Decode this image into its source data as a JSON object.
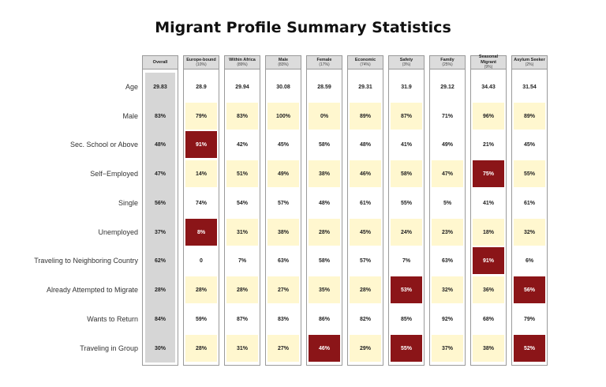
{
  "title": "Migrant Profile Summary Statistics",
  "colors": {
    "low": "#fff7cf",
    "high": "#8b1518",
    "neutral": "#ffffff",
    "overall": "#d6d6d6"
  },
  "chart_data": {
    "type": "table",
    "title": "Migrant Profile Summary Statistics",
    "columns": [
      {
        "name": "Overall",
        "share": ""
      },
      {
        "name": "Europe-bound",
        "share": "(10%)"
      },
      {
        "name": "Within Africa",
        "share": "(89%)"
      },
      {
        "name": "Male",
        "share": "(83%)"
      },
      {
        "name": "Female",
        "share": "(17%)"
      },
      {
        "name": "Economic",
        "share": "(74%)"
      },
      {
        "name": "Safety",
        "share": "(3%)"
      },
      {
        "name": "Family",
        "share": "(25%)"
      },
      {
        "name": "Seasonal Migrant",
        "share": "(9%)"
      },
      {
        "name": "Asylum Seeker",
        "share": "(2%)"
      }
    ],
    "rows": [
      {
        "label": "Age",
        "values": [
          "29.83",
          "28.9",
          "29.94",
          "30.08",
          "28.59",
          "29.31",
          "31.9",
          "29.12",
          "34.43",
          "31.54"
        ],
        "shade": [
          "o",
          "n",
          "n",
          "n",
          "n",
          "n",
          "n",
          "n",
          "n",
          "n"
        ]
      },
      {
        "label": "Male",
        "values": [
          "83%",
          "79%",
          "83%",
          "100%",
          "0%",
          "89%",
          "87%",
          "71%",
          "96%",
          "89%"
        ],
        "shade": [
          "o",
          "l",
          "l",
          "l",
          "l",
          "l",
          "l",
          "n",
          "l",
          "l"
        ]
      },
      {
        "label": "Sec. School or Above",
        "values": [
          "48%",
          "91%",
          "42%",
          "45%",
          "58%",
          "48%",
          "41%",
          "49%",
          "21%",
          "45%"
        ],
        "shade": [
          "o",
          "h",
          "n",
          "n",
          "n",
          "n",
          "n",
          "n",
          "n",
          "n"
        ]
      },
      {
        "label": "Self−Employed",
        "values": [
          "47%",
          "14%",
          "51%",
          "49%",
          "38%",
          "46%",
          "58%",
          "47%",
          "75%",
          "55%"
        ],
        "shade": [
          "o",
          "l",
          "l",
          "l",
          "l",
          "l",
          "l",
          "l",
          "h",
          "l"
        ]
      },
      {
        "label": "Single",
        "values": [
          "56%",
          "74%",
          "54%",
          "57%",
          "48%",
          "61%",
          "55%",
          "5%",
          "41%",
          "61%"
        ],
        "shade": [
          "o",
          "n",
          "n",
          "n",
          "n",
          "n",
          "n",
          "n",
          "n",
          "n"
        ]
      },
      {
        "label": "Unemployed",
        "values": [
          "37%",
          "8%",
          "31%",
          "38%",
          "28%",
          "45%",
          "24%",
          "23%",
          "18%",
          "32%"
        ],
        "shade": [
          "o",
          "h",
          "l",
          "l",
          "l",
          "l",
          "l",
          "l",
          "l",
          "l"
        ]
      },
      {
        "label": "Traveling to Neighboring Country",
        "values": [
          "62%",
          "0",
          "7%",
          "63%",
          "58%",
          "57%",
          "7%",
          "63%",
          "91%",
          "6%"
        ],
        "shade": [
          "o",
          "n",
          "n",
          "n",
          "n",
          "n",
          "n",
          "n",
          "h",
          "n"
        ]
      },
      {
        "label": "Already Attempted to Migrate",
        "values": [
          "28%",
          "28%",
          "28%",
          "27%",
          "35%",
          "28%",
          "53%",
          "32%",
          "36%",
          "56%"
        ],
        "shade": [
          "o",
          "l",
          "l",
          "l",
          "l",
          "l",
          "h",
          "l",
          "l",
          "h"
        ]
      },
      {
        "label": "Wants to Return",
        "values": [
          "84%",
          "59%",
          "87%",
          "83%",
          "86%",
          "82%",
          "85%",
          "92%",
          "68%",
          "79%"
        ],
        "shade": [
          "o",
          "n",
          "n",
          "n",
          "n",
          "n",
          "n",
          "n",
          "n",
          "n"
        ]
      },
      {
        "label": "Traveling in Group",
        "values": [
          "30%",
          "28%",
          "31%",
          "27%",
          "46%",
          "29%",
          "55%",
          "37%",
          "38%",
          "52%"
        ],
        "shade": [
          "o",
          "l",
          "l",
          "l",
          "h",
          "l",
          "h",
          "l",
          "l",
          "h"
        ]
      }
    ]
  }
}
